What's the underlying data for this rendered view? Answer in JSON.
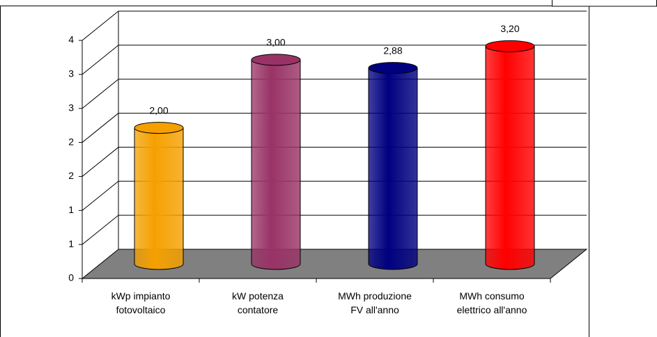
{
  "chart_data": {
    "type": "cylinder-bar",
    "categories": [
      "kWp impianto\nfotovoltaico",
      "kW potenza\ncontatore",
      "MWh produzione\nFV all'anno",
      "MWh consumo\nelettrico all'anno"
    ],
    "values": [
      2.0,
      3.0,
      2.88,
      3.2
    ],
    "value_labels": [
      "2,00",
      "3,00",
      "2,88",
      "3,20"
    ],
    "colors": [
      "#f5a000",
      "#993366",
      "#000080",
      "#ff0000"
    ],
    "ylim": [
      0,
      3.5
    ],
    "yticks": [
      {
        "value": 0,
        "label": "0"
      },
      {
        "value": 0.5,
        "label": "1"
      },
      {
        "value": 1,
        "label": "1"
      },
      {
        "value": 1.5,
        "label": "2"
      },
      {
        "value": 2,
        "label": "2"
      },
      {
        "value": 2.5,
        "label": "3"
      },
      {
        "value": 3,
        "label": "3"
      },
      {
        "value": 3.5,
        "label": "4"
      }
    ],
    "grid": true
  }
}
